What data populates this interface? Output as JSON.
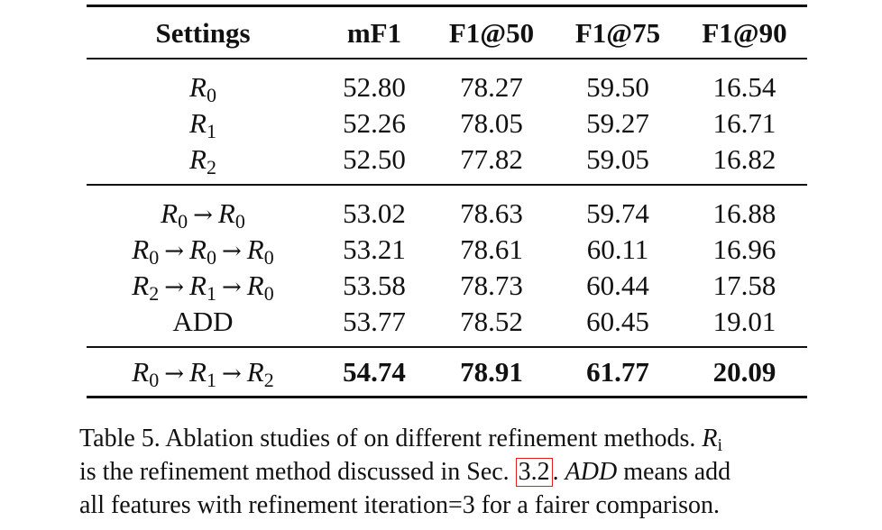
{
  "table": {
    "headers": [
      "Settings",
      "mF1",
      "F1@50",
      "F1@75",
      "F1@90"
    ],
    "groups": [
      {
        "rows": [
          {
            "setting": [
              {
                "sym": "R",
                "sub": "0"
              }
            ],
            "values": [
              "52.80",
              "78.27",
              "59.50",
              "16.54"
            ]
          },
          {
            "setting": [
              {
                "sym": "R",
                "sub": "1"
              }
            ],
            "values": [
              "52.26",
              "78.05",
              "59.27",
              "16.71"
            ]
          },
          {
            "setting": [
              {
                "sym": "R",
                "sub": "2"
              }
            ],
            "values": [
              "52.50",
              "77.82",
              "59.05",
              "16.82"
            ]
          }
        ]
      },
      {
        "rows": [
          {
            "setting": [
              {
                "sym": "R",
                "sub": "0"
              },
              {
                "sym": "R",
                "sub": "0"
              }
            ],
            "values": [
              "53.02",
              "78.63",
              "59.74",
              "16.88"
            ]
          },
          {
            "setting": [
              {
                "sym": "R",
                "sub": "0"
              },
              {
                "sym": "R",
                "sub": "0"
              },
              {
                "sym": "R",
                "sub": "0"
              }
            ],
            "values": [
              "53.21",
              "78.61",
              "60.11",
              "16.96"
            ]
          },
          {
            "setting": [
              {
                "sym": "R",
                "sub": "2"
              },
              {
                "sym": "R",
                "sub": "1"
              },
              {
                "sym": "R",
                "sub": "0"
              }
            ],
            "values": [
              "53.58",
              "78.73",
              "60.44",
              "17.58"
            ]
          },
          {
            "setting_text": "ADD",
            "values": [
              "53.77",
              "78.52",
              "60.45",
              "19.01"
            ]
          }
        ]
      },
      {
        "final": true,
        "rows": [
          {
            "setting": [
              {
                "sym": "R",
                "sub": "0"
              },
              {
                "sym": "R",
                "sub": "1"
              },
              {
                "sym": "R",
                "sub": "2"
              }
            ],
            "values": [
              "54.74",
              "78.91",
              "61.77",
              "20.09"
            ],
            "bold": true
          }
        ]
      }
    ]
  },
  "caption": {
    "line1_a": "Table 5. Ablation studies of on different refinement methods.",
    "line1_math_sym": "R",
    "line1_math_sub": "i",
    "line2_a": "is the refinement method discussed in Sec.",
    "line2_ref": "3.2",
    "line2_b": ".",
    "line2_italic": "ADD",
    "line2_c": "means add",
    "line3": "all features with refinement iteration=3 for a fairer comparison."
  }
}
